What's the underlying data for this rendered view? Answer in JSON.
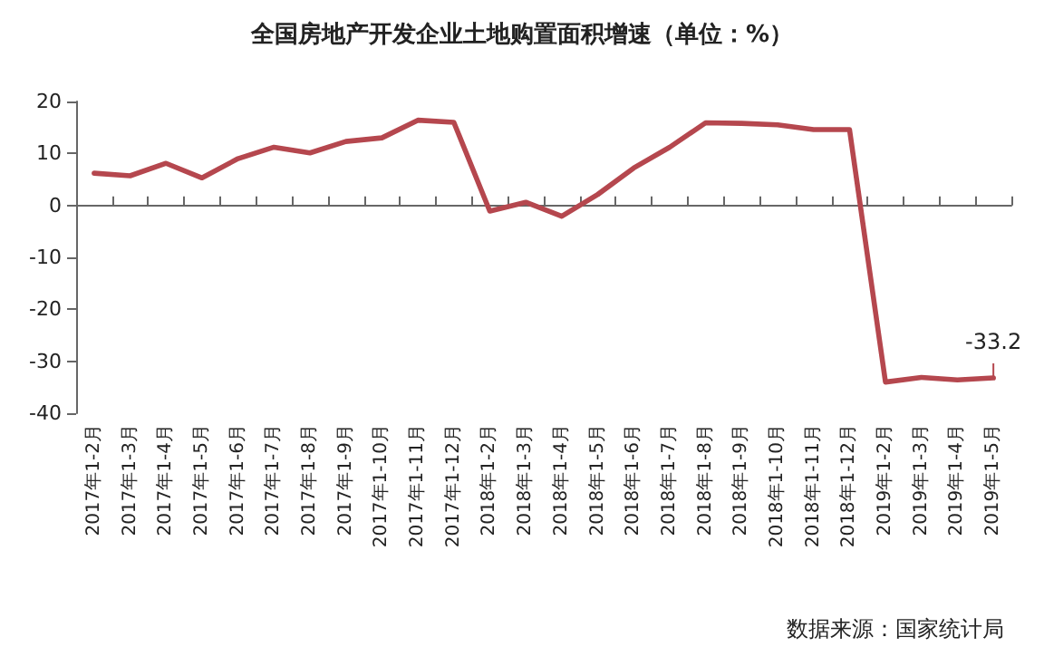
{
  "chart_data": {
    "type": "line",
    "title": "全国房地产开发企业土地购置面积增速（单位：%）",
    "categories": [
      "2017年1-2月",
      "2017年1-3月",
      "2017年1-4月",
      "2017年1-5月",
      "2017年1-6月",
      "2017年1-7月",
      "2017年1-8月",
      "2017年1-9月",
      "2017年1-10月",
      "2017年1-11月",
      "2017年1-12月",
      "2018年1-2月",
      "2018年1-3月",
      "2018年1-4月",
      "2018年1-5月",
      "2018年1-6月",
      "2018年1-7月",
      "2018年1-8月",
      "2018年1-9月",
      "2018年1-10月",
      "2018年1-11月",
      "2018年1-12月",
      "2019年1-2月",
      "2019年1-3月",
      "2019年1-4月",
      "2019年1-5月"
    ],
    "series": [
      {
        "color": "#b5474e",
        "values": [
          6.2,
          5.7,
          8.1,
          5.3,
          9.0,
          11.2,
          10.1,
          12.3,
          13.0,
          16.4,
          16.0,
          -1.1,
          0.6,
          -2.1,
          2.1,
          7.2,
          11.2,
          15.9,
          15.8,
          15.5,
          14.6,
          14.6,
          -34.0,
          -33.1,
          -33.6,
          -33.2
        ],
        "value_labels": [
          null,
          null,
          null,
          null,
          null,
          null,
          null,
          null,
          null,
          null,
          null,
          null,
          null,
          null,
          null,
          null,
          null,
          null,
          null,
          null,
          null,
          null,
          null,
          null,
          null,
          "-33.2"
        ]
      }
    ],
    "ylim": [
      -40,
      20
    ],
    "yticks": [
      -40,
      -30,
      -20,
      -10,
      0,
      10,
      20
    ],
    "marker": "none",
    "line_style": "solid",
    "annotations": [
      "数据来源：国家统计局"
    ]
  }
}
